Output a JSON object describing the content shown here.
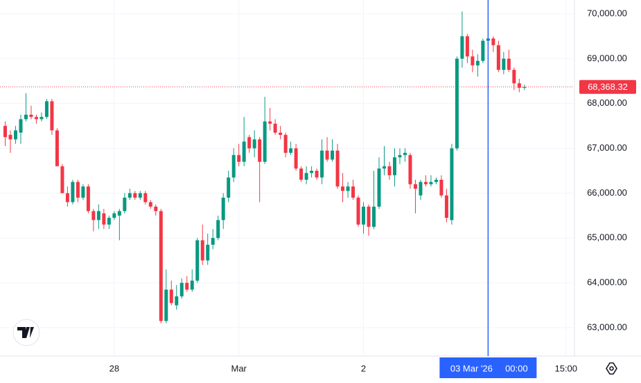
{
  "chart_data": {
    "type": "candlestick",
    "up_color": "#089981",
    "down_color": "#f23645",
    "open": [
      67500,
      67300,
      67200,
      67350,
      67650,
      67750,
      67700,
      67650,
      67700,
      68050,
      67400,
      66600,
      66000,
      65800,
      66250,
      65900,
      66150,
      65600,
      65400,
      65550,
      65300,
      65450,
      65500,
      65600,
      65900,
      66000,
      65900,
      66000,
      65800,
      65700,
      65600,
      63150,
      63850,
      63500,
      63700,
      64000,
      63850,
      64050,
      64950,
      64500,
      64850,
      65000,
      65400,
      65900,
      66350,
      66850,
      66700,
      67250,
      67000,
      67200,
      66700,
      67600,
      67550,
      67350,
      67300,
      66900,
      67000,
      66550,
      66300,
      66450,
      66500,
      66350,
      66950,
      66750,
      66950,
      66150,
      66050,
      66150,
      65900,
      65300,
      65700,
      65250,
      65700,
      66550,
      66600,
      66400,
      66800,
      66850,
      66850,
      66200,
      65950,
      66250,
      66200,
      66250,
      66300,
      65950,
      65400,
      67000,
      69000,
      69500,
      69050,
      68850,
      68950,
      69400,
      69450,
      69300,
      68750,
      69000,
      68750,
      68450,
      68350
    ],
    "high": [
      67600,
      67400,
      67500,
      67750,
      68230,
      67950,
      67750,
      67800,
      68100,
      68100,
      67450,
      66650,
      66150,
      66300,
      66300,
      66200,
      66200,
      65650,
      65750,
      65650,
      65500,
      65600,
      65650,
      66000,
      66100,
      66050,
      66050,
      66050,
      65850,
      65750,
      65650,
      64300,
      64050,
      63950,
      64100,
      64150,
      64300,
      65000,
      65300,
      65100,
      65200,
      65500,
      66000,
      66500,
      67000,
      67100,
      67700,
      67300,
      67400,
      67250,
      68150,
      67900,
      67650,
      67500,
      67350,
      67150,
      67100,
      66600,
      66600,
      66600,
      66550,
      67200,
      67250,
      67200,
      67100,
      66450,
      66250,
      66300,
      65950,
      65800,
      65750,
      66500,
      66800,
      67050,
      66700,
      67000,
      67000,
      67000,
      66900,
      66300,
      66300,
      66400,
      66400,
      66350,
      66400,
      66100,
      67100,
      69050,
      70050,
      69550,
      69200,
      69100,
      69450,
      69500,
      69500,
      69400,
      69150,
      69200,
      68800,
      68550,
      68420
    ],
    "low": [
      67050,
      66900,
      67100,
      67100,
      67600,
      67650,
      67550,
      67600,
      67650,
      67300,
      66600,
      66000,
      65700,
      65750,
      65800,
      65850,
      65550,
      65150,
      65200,
      65200,
      65200,
      65400,
      64950,
      65550,
      65850,
      65850,
      65850,
      65750,
      65650,
      65500,
      63100,
      63100,
      63500,
      63400,
      63650,
      63800,
      63800,
      64000,
      64400,
      64400,
      64750,
      64950,
      65200,
      65800,
      66250,
      66600,
      66600,
      66900,
      66800,
      65800,
      66650,
      67400,
      67300,
      67200,
      66800,
      66850,
      66500,
      66250,
      66200,
      66350,
      66300,
      66200,
      66700,
      66700,
      66100,
      65800,
      65900,
      65850,
      65250,
      65100,
      65050,
      65200,
      65650,
      66400,
      66300,
      66150,
      66650,
      66700,
      66100,
      65550,
      65850,
      66150,
      66150,
      66200,
      65900,
      65350,
      65300,
      66950,
      68800,
      68900,
      68700,
      68600,
      68900,
      69150,
      69150,
      68700,
      68650,
      68700,
      68300,
      68250,
      68300
    ],
    "close": [
      67250,
      67200,
      67400,
      67650,
      67750,
      67700,
      67650,
      67700,
      68050,
      67400,
      66600,
      66000,
      65800,
      66250,
      65900,
      66150,
      65600,
      65400,
      65600,
      65300,
      65450,
      65550,
      65600,
      65900,
      66000,
      65900,
      66000,
      65800,
      65700,
      65600,
      63150,
      63850,
      63550,
      63700,
      64000,
      63850,
      64050,
      64950,
      64500,
      64850,
      65000,
      65400,
      65900,
      66350,
      66850,
      66700,
      67150,
      67000,
      67200,
      66700,
      67600,
      67550,
      67350,
      67300,
      66900,
      67000,
      66550,
      66300,
      66450,
      66500,
      66350,
      66950,
      66750,
      66950,
      66150,
      66050,
      66150,
      65900,
      65300,
      65700,
      65250,
      65700,
      66550,
      66600,
      66400,
      66800,
      66850,
      66900,
      66200,
      66100,
      66250,
      66200,
      66250,
      66300,
      65950,
      65450,
      67000,
      69000,
      69500,
      69050,
      68850,
      68950,
      69400,
      69450,
      69300,
      68750,
      69000,
      68750,
      68450,
      68350,
      68368.32
    ],
    "xlim": [
      -1,
      109.5
    ],
    "xticks": [
      {
        "value": 21,
        "label": "28"
      },
      {
        "value": 45,
        "label": "Mar"
      },
      {
        "value": 69,
        "label": "2"
      },
      {
        "value": 108,
        "label": "15:00"
      }
    ],
    "crosshair": {
      "value": 93,
      "label": "03 Mar '26",
      "time": "00:00"
    },
    "ylim": [
      62368,
      70308
    ],
    "yticks": [
      {
        "value": 63000,
        "label": "63,000.00"
      },
      {
        "value": 64000,
        "label": "64,000.00"
      },
      {
        "value": 65000,
        "label": "65,000.00"
      },
      {
        "value": 66000,
        "label": "66,000.00"
      },
      {
        "value": 67000,
        "label": "67,000.00"
      },
      {
        "value": 68000,
        "label": "68,000.00"
      },
      {
        "value": 69000,
        "label": "69,000.00"
      },
      {
        "value": 70000,
        "label": "70,000.00"
      }
    ],
    "last_price": {
      "value": 68368.32,
      "label": "68,368.32"
    },
    "grid": true
  }
}
